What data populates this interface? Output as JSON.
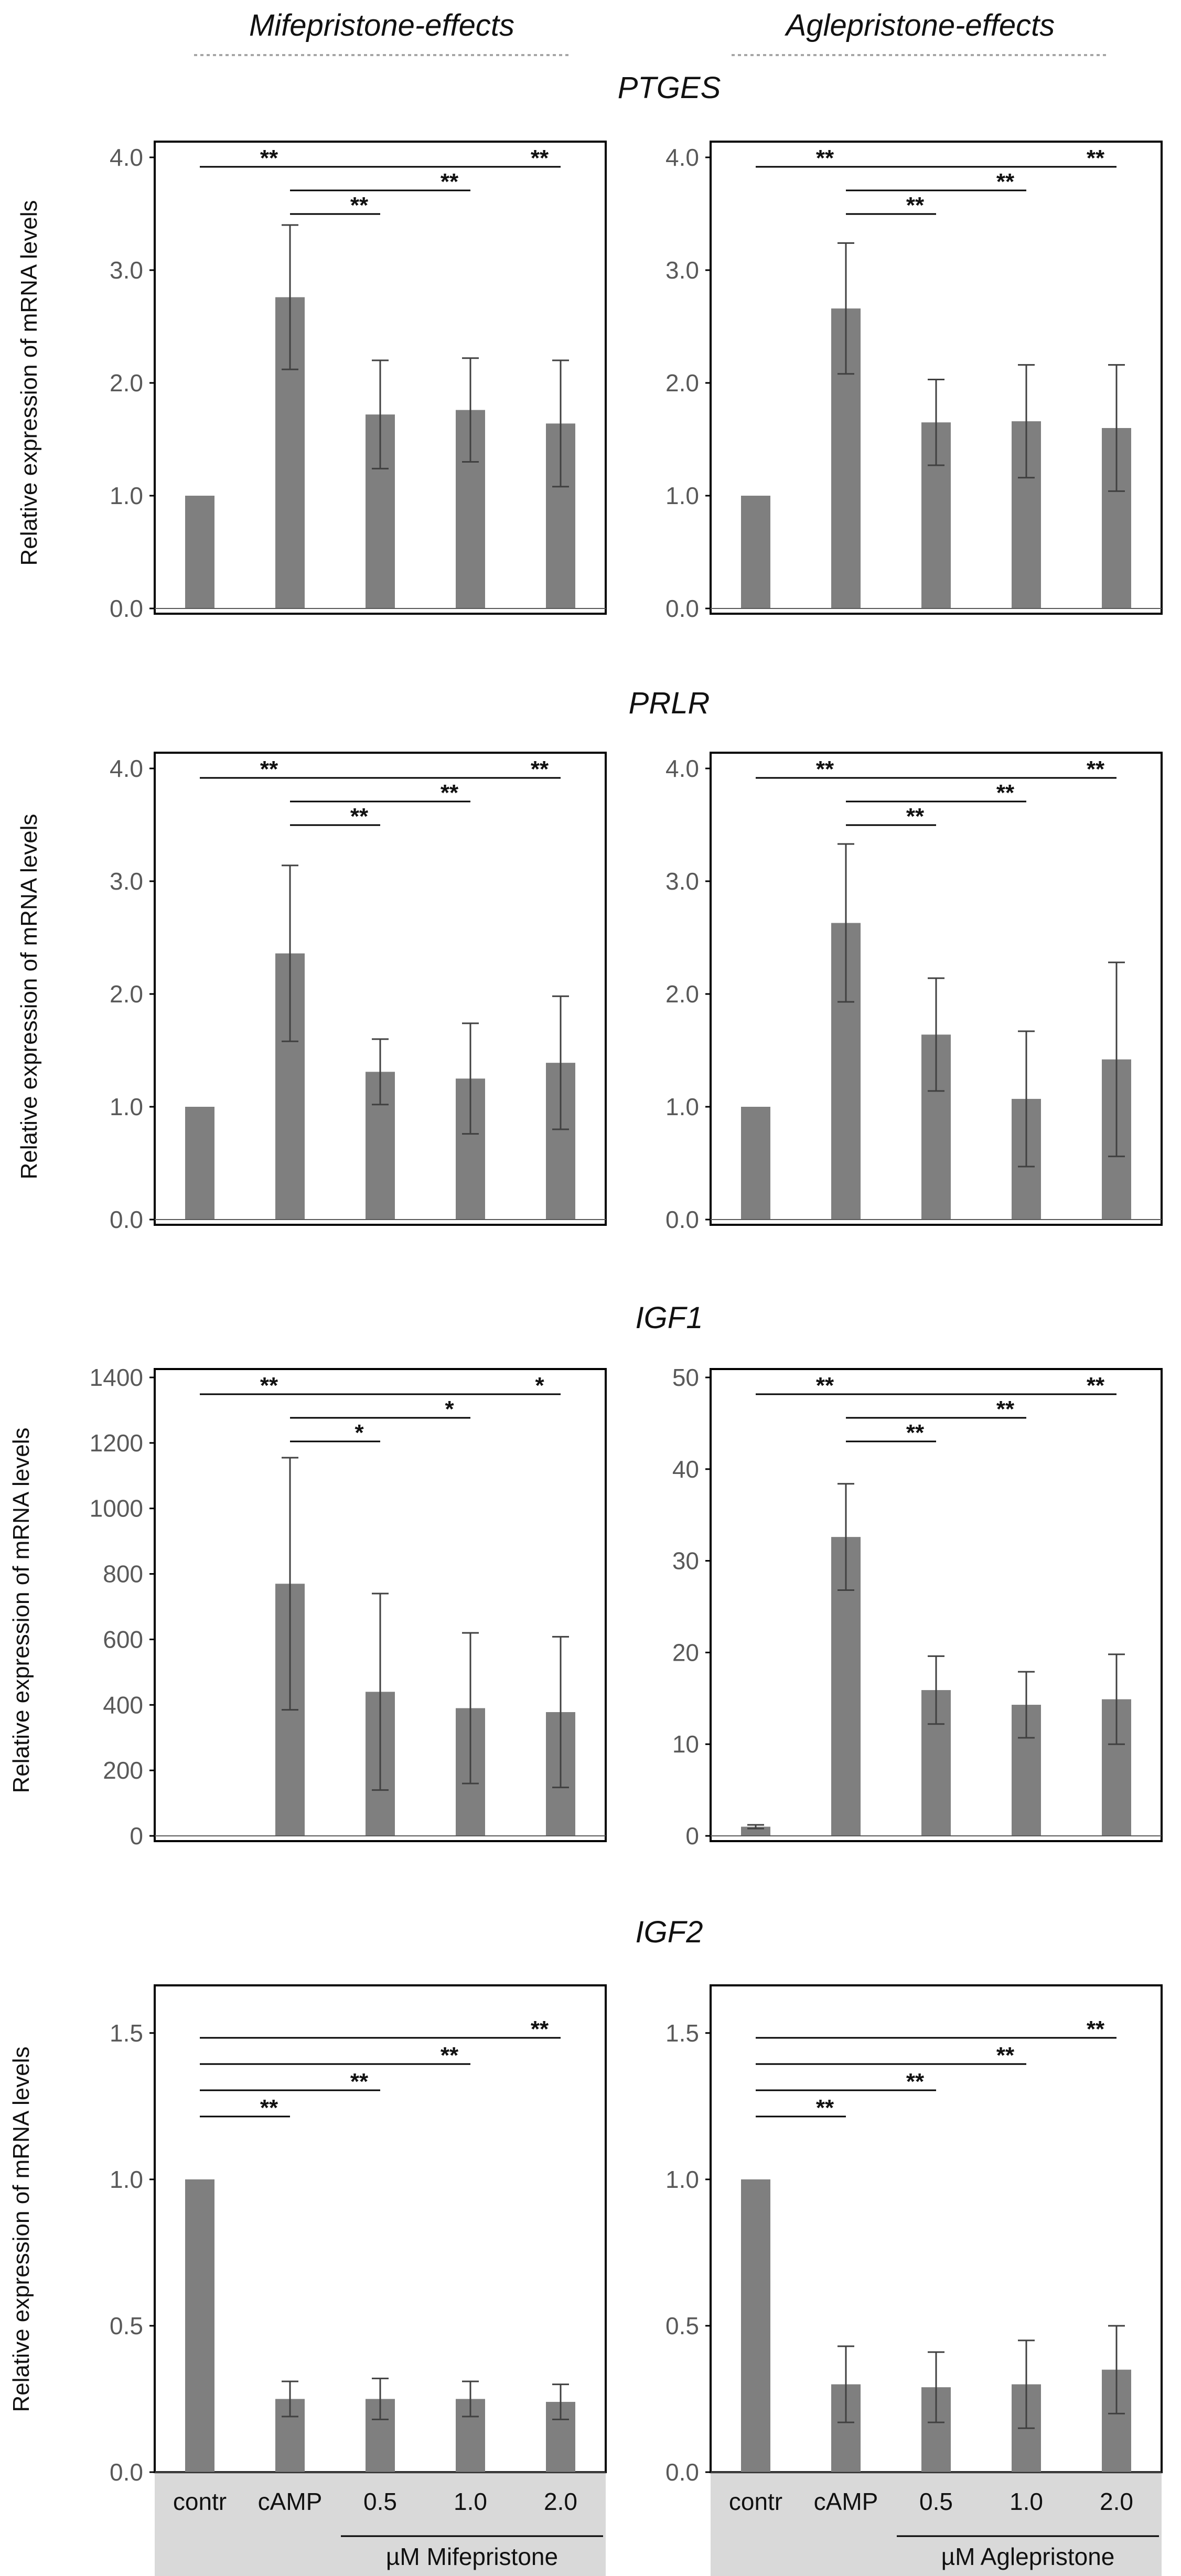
{
  "header": {
    "left": "Mifepristone-effects",
    "right": "Aglepristone-effects"
  },
  "colors": {
    "bar": "#7f7f7f",
    "frame": "#000000",
    "axis_text": "#595959",
    "sig_line": "#000000",
    "footer_bg": "#d9d9d9",
    "divider": "#a6a6a6"
  },
  "ylabel": "Relative expression of mRNA levels",
  "footer": {
    "categories": [
      "contr",
      "cAMP",
      "0.5",
      "1.0",
      "2.0"
    ],
    "left_sub": "µM Mifepristone",
    "right_sub": "µM Aglepristone"
  },
  "chart_data": [
    {
      "type": "bar",
      "gene": "PTGES",
      "panel": "left",
      "categories": [
        "contr",
        "cAMP",
        "0.5",
        "1.0",
        "2.0"
      ],
      "values": [
        1.0,
        2.76,
        1.72,
        1.76,
        1.64
      ],
      "errors": [
        0.0,
        0.64,
        0.48,
        0.46,
        0.56
      ],
      "ylim": [
        0,
        4
      ],
      "yticks": [
        "0.0",
        "1.0",
        "2.0",
        "3.0",
        "4.0"
      ],
      "significance": [
        {
          "from": 0,
          "to": 1,
          "label": "**"
        },
        {
          "from": 1,
          "to": 4,
          "label": "**"
        },
        {
          "from": 1,
          "to": 3,
          "label": "**"
        },
        {
          "from": 1,
          "to": 2,
          "label": "**"
        }
      ]
    },
    {
      "type": "bar",
      "gene": "PTGES",
      "panel": "right",
      "categories": [
        "contr",
        "cAMP",
        "0.5",
        "1.0",
        "2.0"
      ],
      "values": [
        1.0,
        2.66,
        1.65,
        1.66,
        1.6
      ],
      "errors": [
        0.0,
        0.58,
        0.38,
        0.5,
        0.56
      ],
      "ylim": [
        0,
        4
      ],
      "yticks": [
        "0.0",
        "1.0",
        "2.0",
        "3.0",
        "4.0"
      ],
      "significance": [
        {
          "from": 0,
          "to": 1,
          "label": "**"
        },
        {
          "from": 1,
          "to": 4,
          "label": "**"
        },
        {
          "from": 1,
          "to": 3,
          "label": "**"
        },
        {
          "from": 1,
          "to": 2,
          "label": "**"
        }
      ]
    },
    {
      "type": "bar",
      "gene": "PRLR",
      "panel": "left",
      "categories": [
        "contr",
        "cAMP",
        "0.5",
        "1.0",
        "2.0"
      ],
      "values": [
        1.0,
        2.36,
        1.31,
        1.25,
        1.39
      ],
      "errors": [
        0.0,
        0.78,
        0.29,
        0.49,
        0.59
      ],
      "ylim": [
        0,
        4
      ],
      "yticks": [
        "0.0",
        "1.0",
        "2.0",
        "3.0",
        "4.0"
      ],
      "significance": [
        {
          "from": 0,
          "to": 1,
          "label": "**"
        },
        {
          "from": 1,
          "to": 4,
          "label": "**"
        },
        {
          "from": 1,
          "to": 3,
          "label": "**"
        },
        {
          "from": 1,
          "to": 2,
          "label": "**"
        }
      ]
    },
    {
      "type": "bar",
      "gene": "PRLR",
      "panel": "right",
      "categories": [
        "contr",
        "cAMP",
        "0.5",
        "1.0",
        "2.0"
      ],
      "values": [
        1.0,
        2.63,
        1.64,
        1.07,
        1.42
      ],
      "errors": [
        0.0,
        0.7,
        0.5,
        0.6,
        0.86
      ],
      "ylim": [
        0,
        4
      ],
      "yticks": [
        "0.0",
        "1.0",
        "2.0",
        "3.0",
        "4.0"
      ],
      "significance": [
        {
          "from": 0,
          "to": 1,
          "label": "**"
        },
        {
          "from": 1,
          "to": 4,
          "label": "**"
        },
        {
          "from": 1,
          "to": 3,
          "label": "**"
        },
        {
          "from": 1,
          "to": 2,
          "label": "**"
        }
      ]
    },
    {
      "type": "bar",
      "gene": "IGF1",
      "panel": "left",
      "categories": [
        "contr",
        "cAMP",
        "0.5",
        "1.0",
        "2.0"
      ],
      "values": [
        1,
        770,
        440,
        390,
        378
      ],
      "errors": [
        0,
        385,
        300,
        230,
        230
      ],
      "ylim": [
        0,
        1400
      ],
      "yticks": [
        "0",
        "200",
        "400",
        "600",
        "800",
        "1000",
        "1200",
        "1400"
      ],
      "significance": [
        {
          "from": 0,
          "to": 1,
          "label": "**"
        },
        {
          "from": 1,
          "to": 4,
          "label": "*"
        },
        {
          "from": 1,
          "to": 3,
          "label": "*"
        },
        {
          "from": 1,
          "to": 2,
          "label": "*"
        }
      ]
    },
    {
      "type": "bar",
      "gene": "IGF1",
      "panel": "right",
      "categories": [
        "contr",
        "cAMP",
        "0.5",
        "1.0",
        "2.0"
      ],
      "values": [
        1.0,
        32.6,
        15.9,
        14.3,
        14.9
      ],
      "errors": [
        0.2,
        5.8,
        3.7,
        3.6,
        4.9
      ],
      "ylim": [
        0,
        50
      ],
      "yticks": [
        "0",
        "10",
        "20",
        "30",
        "40",
        "50"
      ],
      "significance": [
        {
          "from": 0,
          "to": 1,
          "label": "**"
        },
        {
          "from": 1,
          "to": 4,
          "label": "**"
        },
        {
          "from": 1,
          "to": 3,
          "label": "**"
        },
        {
          "from": 1,
          "to": 2,
          "label": "**"
        }
      ]
    },
    {
      "type": "bar",
      "gene": "IGF2",
      "panel": "left",
      "categories": [
        "contr",
        "cAMP",
        "0.5",
        "1.0",
        "2.0"
      ],
      "values": [
        1.0,
        0.25,
        0.25,
        0.25,
        0.24
      ],
      "errors": [
        0.0,
        0.06,
        0.07,
        0.06,
        0.06
      ],
      "ylim": [
        0,
        1.6
      ],
      "yticks": [
        "0.0",
        "0.5",
        "1.0",
        "1.5"
      ],
      "significance": [
        {
          "from": 0,
          "to": 4,
          "label": "**"
        },
        {
          "from": 0,
          "to": 3,
          "label": "**"
        },
        {
          "from": 0,
          "to": 2,
          "label": "**"
        },
        {
          "from": 0,
          "to": 1,
          "label": "**"
        }
      ]
    },
    {
      "type": "bar",
      "gene": "IGF2",
      "panel": "right",
      "categories": [
        "contr",
        "cAMP",
        "0.5",
        "1.0",
        "2.0"
      ],
      "values": [
        1.0,
        0.3,
        0.29,
        0.3,
        0.35
      ],
      "errors": [
        0.0,
        0.13,
        0.12,
        0.15,
        0.15
      ],
      "ylim": [
        0,
        1.6
      ],
      "yticks": [
        "0.0",
        "0.5",
        "1.0",
        "1.5"
      ],
      "significance": [
        {
          "from": 0,
          "to": 4,
          "label": "**"
        },
        {
          "from": 0,
          "to": 3,
          "label": "**"
        },
        {
          "from": 0,
          "to": 2,
          "label": "**"
        },
        {
          "from": 0,
          "to": 1,
          "label": "**"
        }
      ]
    }
  ]
}
